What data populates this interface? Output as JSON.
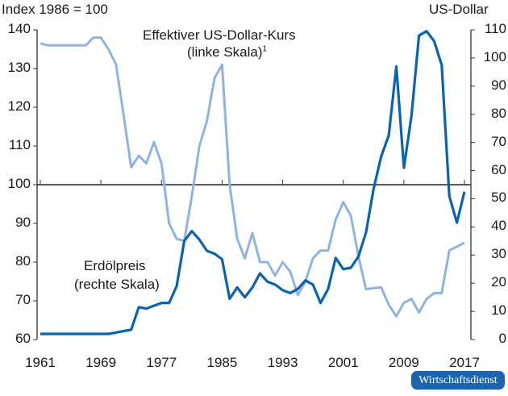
{
  "chart_data": {
    "type": "line",
    "title": "",
    "left_axis_label": "Index 1986 = 100",
    "right_axis_label": "US-Dollar",
    "left_ylim": [
      60,
      140
    ],
    "right_ylim": [
      0,
      110
    ],
    "left_ticks": [
      "140",
      "130",
      "120",
      "110",
      "100",
      "90",
      "80",
      "70",
      "60"
    ],
    "right_ticks": [
      "110",
      "100",
      "90",
      "80",
      "70",
      "60",
      "50",
      "40",
      "30",
      "20",
      "10",
      "0"
    ],
    "x_tick_labels": [
      "1961",
      "1969",
      "1977",
      "1985",
      "1993",
      "2001",
      "2009",
      "2017"
    ],
    "grid": false,
    "x": [
      1961,
      1962,
      1963,
      1964,
      1965,
      1966,
      1967,
      1968,
      1969,
      1970,
      1971,
      1972,
      1973,
      1974,
      1975,
      1976,
      1977,
      1978,
      1979,
      1980,
      1981,
      1982,
      1983,
      1984,
      1985,
      1986,
      1987,
      1988,
      1989,
      1990,
      1991,
      1992,
      1993,
      1994,
      1995,
      1996,
      1997,
      1998,
      1999,
      2000,
      2001,
      2002,
      2003,
      2004,
      2005,
      2006,
      2007,
      2008,
      2009,
      2010,
      2011,
      2012,
      2013,
      2014,
      2015,
      2016,
      2017
    ],
    "series": [
      {
        "name": "Effektiver US-Dollar-Kurs (linke Skala)¹",
        "axis": "left",
        "color": "#8fb3e3",
        "values": [
          136.5,
          136,
          136,
          136,
          136,
          136,
          136,
          138,
          138,
          135,
          131,
          118,
          104.5,
          107.5,
          105.5,
          111,
          105.5,
          90,
          86,
          85.5,
          97,
          110,
          116.5,
          127.5,
          131,
          100,
          86,
          81,
          87.5,
          80,
          80,
          76.5,
          80,
          77.5,
          71.5,
          75,
          81,
          83,
          83,
          91,
          95.5,
          92,
          81.5,
          73,
          73.3,
          73.5,
          69,
          66,
          69.5,
          70.5,
          67,
          70.5,
          72,
          72,
          83,
          84,
          85
        ]
      },
      {
        "name": "Erdölpreis (rechte Skala)",
        "axis": "right",
        "color": "#0b63b0",
        "values": [
          2,
          2,
          2,
          2,
          2,
          2,
          2,
          2,
          2,
          2,
          2.5,
          3,
          3.5,
          11.5,
          11,
          12,
          13,
          13,
          19,
          35,
          38.5,
          35.5,
          31.5,
          30.5,
          28.5,
          14.5,
          18.5,
          15,
          18.5,
          23.5,
          20.5,
          19.5,
          17.5,
          16.5,
          18,
          21,
          19.5,
          13,
          18,
          29,
          25,
          25.5,
          29.5,
          38,
          53.5,
          65,
          72.5,
          97,
          61,
          79.5,
          108,
          109.5,
          106,
          97.5,
          51,
          41.5,
          52.5
        ]
      }
    ],
    "annotations": [
      {
        "text_line1": "Effektiver US-Dollar-Kurs",
        "text_line2": "(linke Skala)",
        "superscript": "1"
      },
      {
        "text_line1": "Erdölpreis",
        "text_line2": "(rechte Skala)"
      }
    ],
    "reference_line": 100
  },
  "labels": {
    "left_axis_title": "Index 1986 = 100",
    "right_axis_title": "US-Dollar",
    "usd_line1": "Effektiver US-Dollar-Kurs",
    "usd_line2": "(linke Skala)",
    "usd_sup": "1",
    "oil_line1": "Erdölpreis",
    "oil_line2": "(rechte Skala)",
    "brand": "Wirtschaftsdienst"
  }
}
